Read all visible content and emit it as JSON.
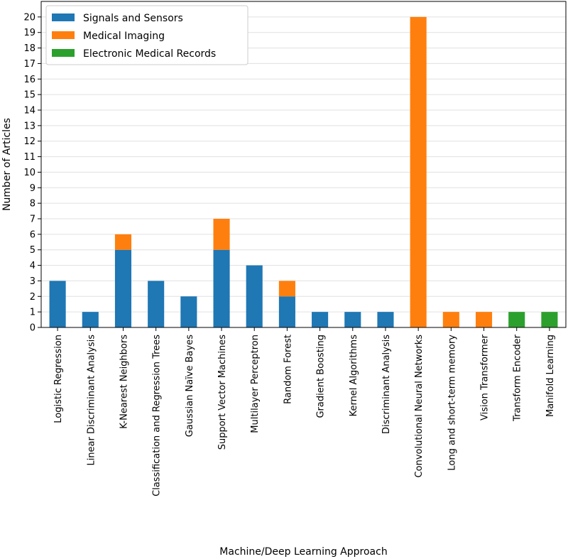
{
  "chart_data": {
    "type": "bar",
    "stacked": true,
    "title": "",
    "xlabel": "Machine/Deep Learning Approach",
    "ylabel": "Number of Articles",
    "ylim": [
      0,
      21
    ],
    "yticks": [
      0,
      1,
      2,
      3,
      4,
      5,
      6,
      7,
      8,
      9,
      10,
      11,
      12,
      13,
      14,
      15,
      16,
      17,
      18,
      19,
      20
    ],
    "grid": true,
    "legend_position": "top-left",
    "categories": [
      "Logistic Regression",
      "Linear Discriminant Analysis",
      "K-Nearest Neighbors",
      "Classification and Regression Trees",
      "Gaussian Naïve Bayes",
      "Support Vector Machines",
      "Multilayer Perceptron",
      "Random Forest",
      "Gradient Boosting",
      "Kernel Algorithms",
      "Discriminant Analysis",
      "Convolutional Neural Networks",
      "Long and short-term memory",
      "Vision Transformer",
      "Transform Encoder",
      "Manifold Learning"
    ],
    "series": [
      {
        "name": "Signals and Sensors",
        "color": "#1f77b4",
        "values": [
          3,
          1,
          5,
          3,
          2,
          5,
          4,
          2,
          1,
          1,
          1,
          0,
          0,
          0,
          0,
          0
        ]
      },
      {
        "name": "Medical Imaging",
        "color": "#ff7f0e",
        "values": [
          0,
          0,
          1,
          0,
          0,
          2,
          0,
          1,
          0,
          0,
          0,
          20,
          1,
          1,
          0,
          0
        ]
      },
      {
        "name": "Electronic Medical Records",
        "color": "#2ca02c",
        "values": [
          0,
          0,
          0,
          0,
          0,
          0,
          0,
          0,
          0,
          0,
          0,
          0,
          0,
          0,
          1,
          1
        ]
      }
    ]
  }
}
